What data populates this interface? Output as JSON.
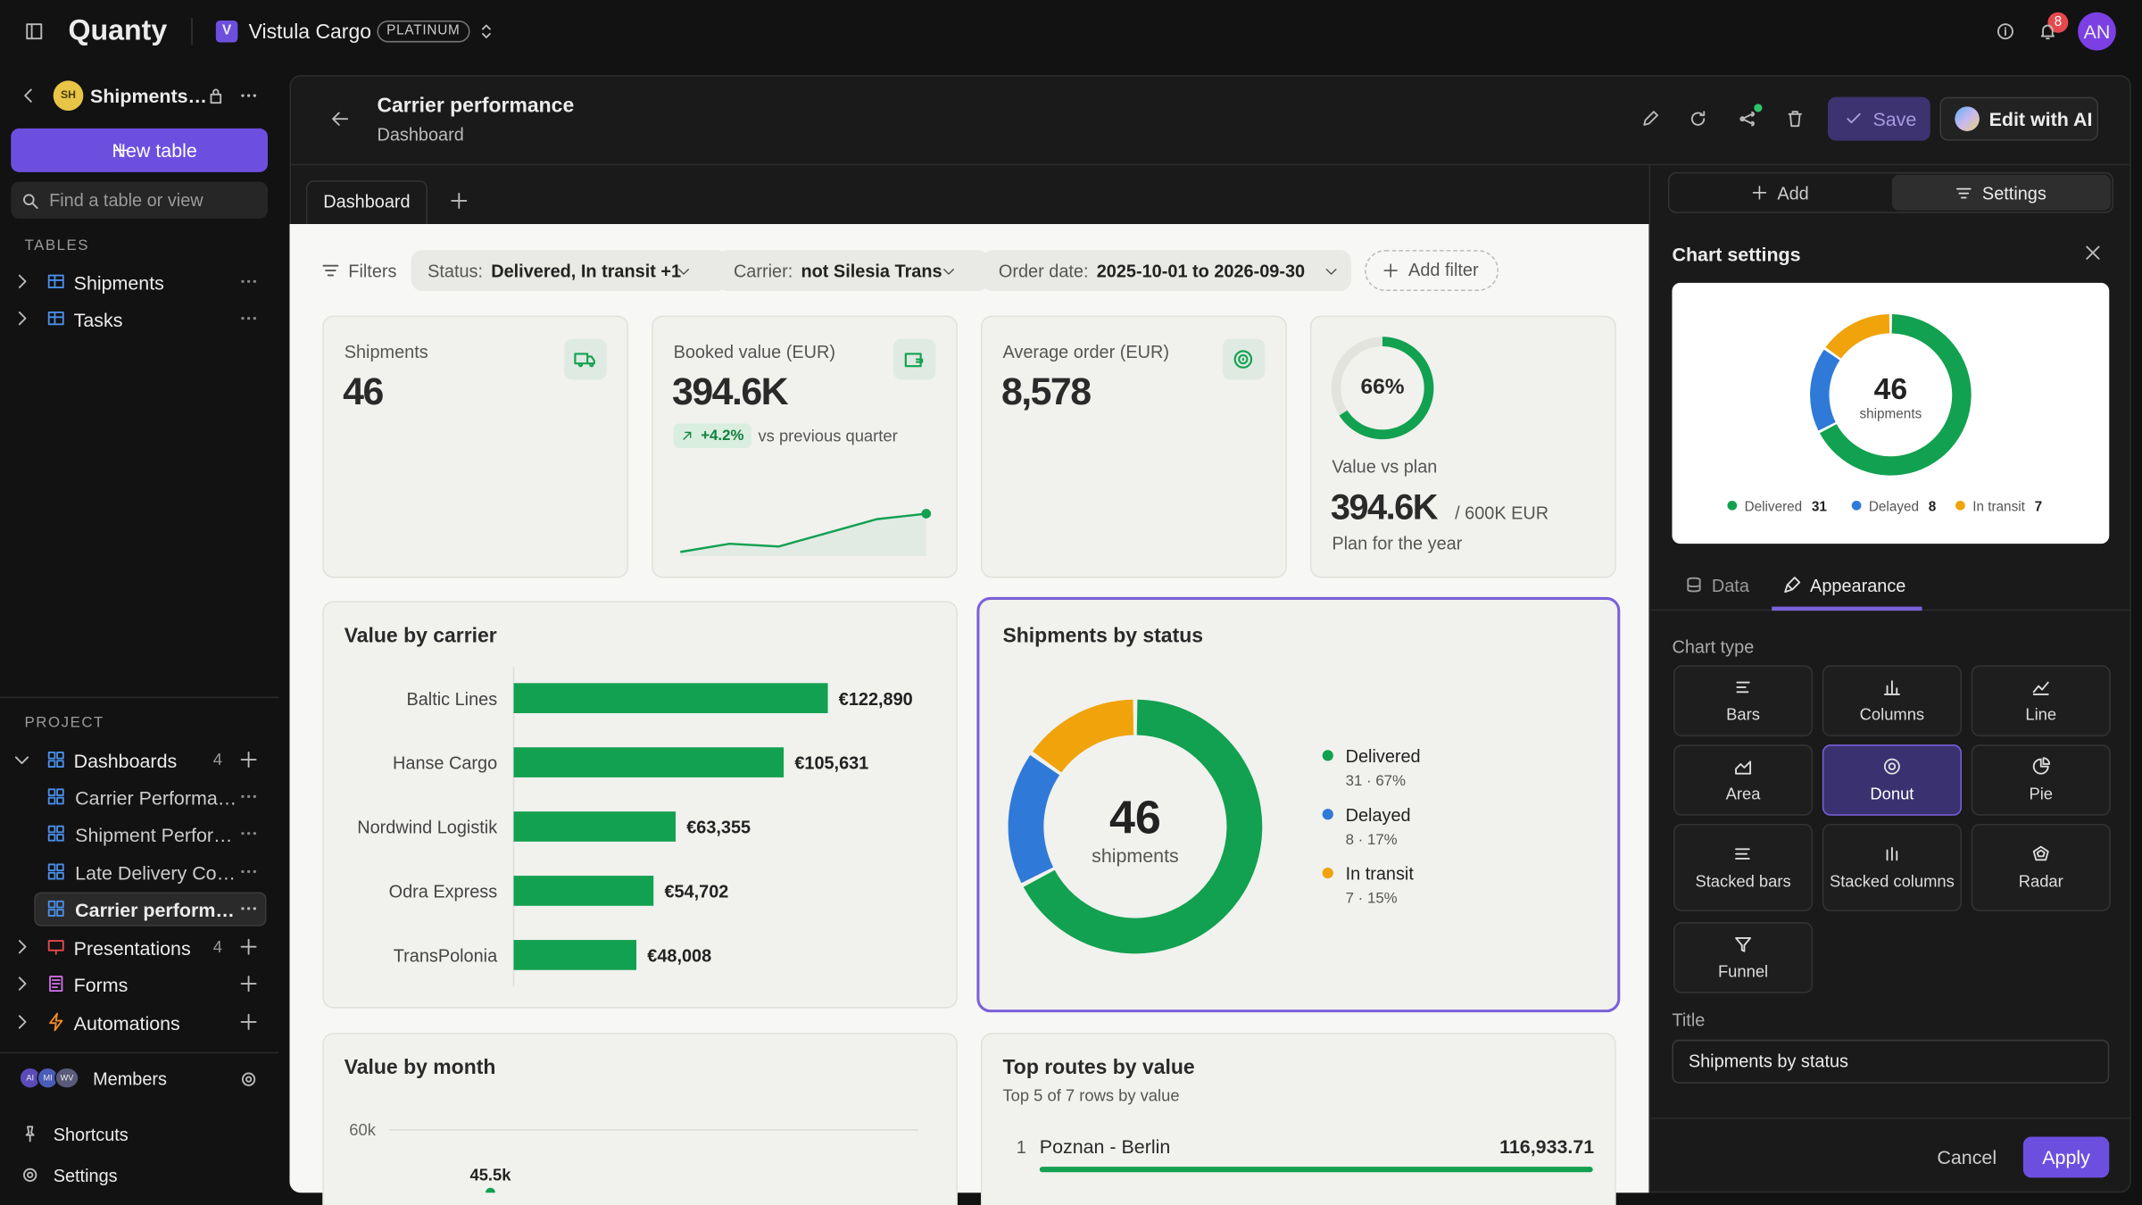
{
  "app": {
    "brand": "Quanty",
    "workspace_badge": "V",
    "workspace": "Vistula Cargo",
    "plan": "PLATINUM",
    "notification_count": "8",
    "user_initials": "AN"
  },
  "sidebar": {
    "base_badge": "SH",
    "base_name": "Shipments…",
    "new_table": "New table",
    "search_placeholder": "Find a table or view",
    "tables_heading": "TABLES",
    "tables": [
      "Shipments",
      "Tasks"
    ],
    "project_heading": "PROJECT",
    "dashboards": {
      "label": "Dashboards",
      "count": "4",
      "items": [
        "Carrier Performa…",
        "Shipment Perfor…",
        "Late Delivery Co…",
        "Carrier perform…"
      ]
    },
    "presentations": {
      "label": "Presentations",
      "count": "4"
    },
    "forms": "Forms",
    "automations": "Automations",
    "member_badges": [
      "AI",
      "MI",
      "WV"
    ],
    "members": "Members",
    "shortcuts": "Shortcuts",
    "settings": "Settings"
  },
  "header": {
    "title": "Carrier performance",
    "subtitle": "Dashboard",
    "save": "Save",
    "edit_with_ai": "Edit with AI",
    "tab": "Dashboard"
  },
  "filters": {
    "label": "Filters",
    "items": [
      {
        "key": "Status:",
        "value": "Delivered, In transit +1"
      },
      {
        "key": "Carrier:",
        "value": "not Silesia Trans"
      },
      {
        "key": "Order date:",
        "value": "2025-10-01 to 2026-09-30"
      }
    ],
    "add": "Add filter"
  },
  "kpis": [
    {
      "label": "Shipments",
      "value": "46"
    },
    {
      "label": "Booked value (EUR)",
      "value": "394.6K",
      "delta": "+4.2%",
      "delta_note": "vs previous quarter",
      "trend": [
        2,
        8,
        6,
        16,
        26,
        30
      ],
      "color": "#12a150"
    },
    {
      "label": "Average order (EUR)",
      "value": "8,578"
    },
    {
      "label": "Value vs plan",
      "progress": 66,
      "progress_label": "66%",
      "value": "394.6K",
      "target": "/ 600K EUR",
      "note": "Plan for the year",
      "color": "#12a150"
    }
  ],
  "chart_data": [
    {
      "type": "bar",
      "title": "Value by carrier",
      "categories": [
        "Baltic Lines",
        "Hanse Cargo",
        "Nordwind Logistik",
        "Odra Express",
        "TransPolonia"
      ],
      "values": [
        122890,
        105631,
        63355,
        54702,
        48008
      ],
      "value_labels": [
        "€122,890",
        "€105,631",
        "€63,355",
        "€54,702",
        "€48,008"
      ],
      "color": "#12a150"
    },
    {
      "type": "donut",
      "title": "Shipments by status",
      "total": 46,
      "total_label": "shipments",
      "categories": [
        "Delivered",
        "Delayed",
        "In transit"
      ],
      "values": [
        31,
        8,
        7
      ],
      "value_labels": [
        "31 · 67%",
        "8 · 17%",
        "7 · 15%"
      ],
      "colors": [
        "#12a150",
        "#2f7ad8",
        "#f0a30a"
      ]
    },
    {
      "type": "line",
      "title": "Value by month",
      "values": [
        45500
      ],
      "value_labels": [
        "45.5k"
      ],
      "color": "#12a150",
      "ylim": [
        0,
        60000
      ],
      "yticks": [
        {
          "value": 60000,
          "label": "60k"
        }
      ],
      "grid": true
    }
  ],
  "top_routes": {
    "title": "Top routes by value",
    "subtitle": "Top 5 of 7 rows by value",
    "rows": [
      {
        "rank": "1",
        "route": "Poznan - Berlin",
        "value": 116933.71,
        "value_label": "116,933.71"
      }
    ],
    "color": "#12a150"
  },
  "settings_panel": {
    "tabs": [
      "Add",
      "Settings"
    ],
    "heading": "Chart settings",
    "subtabs": [
      "Data",
      "Appearance"
    ],
    "chart_type_label": "Chart type",
    "chart_types": [
      "Bars",
      "Columns",
      "Line",
      "Area",
      "Donut",
      "Pie",
      "Stacked bars",
      "Stacked columns",
      "Radar",
      "Funnel"
    ],
    "selected": "Donut",
    "title_label": "Title",
    "cancel": "Cancel",
    "apply": "Apply"
  }
}
